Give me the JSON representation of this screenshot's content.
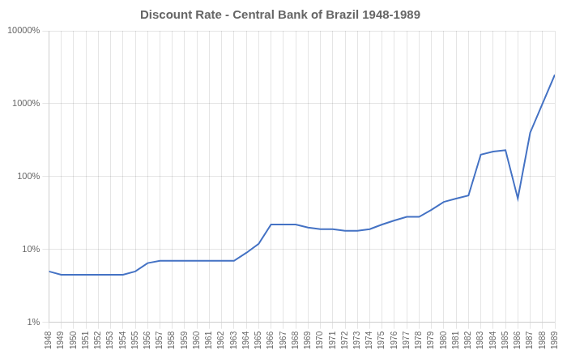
{
  "chart_data": {
    "type": "line",
    "title": "Discount Rate - Central Bank of Brazil 1948-1989",
    "x": [
      1948,
      1949,
      1950,
      1951,
      1952,
      1953,
      1954,
      1955,
      1956,
      1957,
      1958,
      1959,
      1960,
      1961,
      1962,
      1963,
      1964,
      1965,
      1966,
      1967,
      1968,
      1969,
      1970,
      1971,
      1972,
      1973,
      1974,
      1975,
      1976,
      1977,
      1978,
      1979,
      1980,
      1981,
      1982,
      1983,
      1984,
      1985,
      1986,
      1987,
      1988,
      1989
    ],
    "values": [
      5.0,
      4.5,
      4.5,
      4.5,
      4.5,
      4.5,
      4.5,
      5.0,
      6.5,
      7.0,
      7.0,
      7.0,
      7.0,
      7.0,
      7.0,
      7.0,
      9.0,
      12.0,
      22.0,
      22.0,
      22.0,
      20.0,
      19.0,
      19.0,
      18.0,
      18.0,
      19.0,
      22.0,
      25.0,
      28.0,
      28.0,
      35.0,
      45.0,
      50.0,
      55.0,
      200.0,
      220.0,
      230.0,
      50.0,
      400.0,
      1000.0,
      2500.0
    ],
    "color": "#4472c4",
    "log": "y",
    "xlim": [
      1948,
      1989
    ],
    "xticks": [
      1948,
      1949,
      1950,
      1951,
      1952,
      1953,
      1954,
      1955,
      1956,
      1957,
      1958,
      1959,
      1960,
      1961,
      1962,
      1963,
      1964,
      1965,
      1966,
      1967,
      1968,
      1969,
      1970,
      1971,
      1972,
      1973,
      1974,
      1975,
      1976,
      1977,
      1978,
      1979,
      1980,
      1981,
      1982,
      1983,
      1984,
      1985,
      1986,
      1987,
      1988,
      1989
    ],
    "ylim": [
      1,
      10000
    ],
    "yticks": [
      {
        "value": 1,
        "label": "1%"
      },
      {
        "value": 10,
        "label": "10%"
      },
      {
        "value": 100,
        "label": "100%"
      },
      {
        "value": 1000,
        "label": "1000%"
      },
      {
        "value": 10000,
        "label": "10000%"
      }
    ],
    "grid": true
  }
}
